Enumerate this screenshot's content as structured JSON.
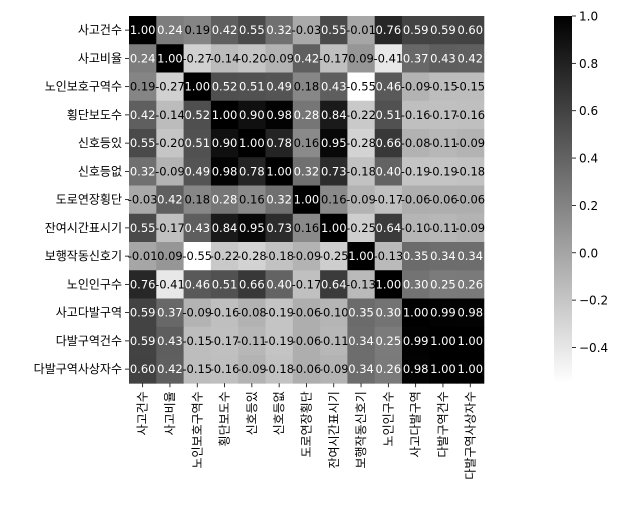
{
  "chart_data": {
    "type": "heatmap",
    "title": "",
    "xlabel": "",
    "ylabel": "",
    "labels": [
      "사고건수",
      "사고비율",
      "노인보호구역수",
      "횡단보도수",
      "신호등있",
      "신호등없",
      "도로연장횡단",
      "잔여시간표시기",
      "보행작동신호기",
      "노인인구수",
      "사고다발구역",
      "다발구역건수",
      "다발구역사상자수"
    ],
    "matrix": [
      [
        1.0,
        0.24,
        0.19,
        0.42,
        0.55,
        0.32,
        -0.03,
        0.55,
        -0.01,
        0.76,
        0.59,
        0.59,
        0.6
      ],
      [
        0.24,
        1.0,
        -0.27,
        -0.14,
        -0.2,
        -0.09,
        0.42,
        -0.17,
        0.09,
        -0.41,
        0.37,
        0.43,
        0.42
      ],
      [
        0.19,
        -0.27,
        1.0,
        0.52,
        0.51,
        0.49,
        0.18,
        0.43,
        -0.55,
        0.46,
        -0.09,
        -0.15,
        -0.15
      ],
      [
        0.42,
        -0.14,
        0.52,
        1.0,
        0.9,
        0.98,
        0.28,
        0.84,
        -0.22,
        0.51,
        -0.16,
        -0.17,
        -0.16
      ],
      [
        0.55,
        -0.2,
        0.51,
        0.9,
        1.0,
        0.78,
        0.16,
        0.95,
        -0.28,
        0.66,
        -0.08,
        -0.11,
        -0.09
      ],
      [
        0.32,
        -0.09,
        0.49,
        0.98,
        0.78,
        1.0,
        0.32,
        0.73,
        -0.18,
        0.4,
        -0.19,
        -0.19,
        -0.18
      ],
      [
        -0.03,
        0.42,
        0.18,
        0.28,
        0.16,
        0.32,
        1.0,
        0.16,
        -0.09,
        -0.17,
        -0.06,
        -0.06,
        -0.06
      ],
      [
        0.55,
        -0.17,
        0.43,
        0.84,
        0.95,
        0.73,
        0.16,
        1.0,
        -0.25,
        0.64,
        -0.1,
        -0.11,
        -0.09
      ],
      [
        -0.01,
        0.09,
        -0.55,
        -0.22,
        -0.28,
        -0.18,
        -0.09,
        -0.25,
        1.0,
        -0.13,
        0.35,
        0.34,
        0.34
      ],
      [
        0.76,
        -0.41,
        0.46,
        0.51,
        0.66,
        0.4,
        -0.17,
        0.64,
        -0.13,
        1.0,
        0.3,
        0.25,
        0.26
      ],
      [
        0.59,
        0.37,
        -0.09,
        -0.16,
        -0.08,
        -0.19,
        -0.06,
        -0.1,
        0.35,
        0.3,
        1.0,
        0.99,
        0.98
      ],
      [
        0.59,
        0.43,
        -0.15,
        -0.17,
        -0.11,
        -0.19,
        -0.06,
        -0.11,
        0.34,
        0.25,
        0.99,
        1.0,
        1.0
      ],
      [
        0.6,
        0.42,
        -0.15,
        -0.16,
        -0.09,
        -0.18,
        -0.06,
        -0.09,
        0.34,
        0.26,
        0.98,
        1.0,
        1.0
      ]
    ],
    "value_range": [
      -0.55,
      1.0
    ],
    "colormap": "gray_r",
    "colorbar": {
      "ticks": [
        1.0,
        0.8,
        0.6,
        0.4,
        0.2,
        0.0,
        -0.2,
        -0.4
      ],
      "tick_labels": [
        "1.0",
        "0.8",
        "0.6",
        "0.4",
        "0.2",
        "0.0",
        "−0.2",
        "−0.4"
      ]
    },
    "annotations": true,
    "grid": false,
    "legend": "colorbar-right"
  }
}
